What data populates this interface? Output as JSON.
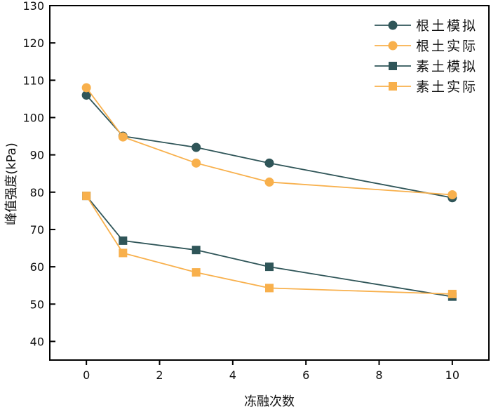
{
  "chart_data": {
    "type": "line",
    "title": "",
    "xlabel": "冻融次数",
    "ylabel": "峰值强度(kPa)",
    "xlim": [
      -1,
      11
    ],
    "ylim": [
      35,
      130
    ],
    "xticks": [
      0,
      2,
      4,
      6,
      8,
      10
    ],
    "yticks": [
      40,
      50,
      60,
      70,
      80,
      90,
      100,
      110,
      120,
      130
    ],
    "grid": false,
    "legend_position": "top-right",
    "x": [
      0,
      1,
      3,
      5,
      10
    ],
    "series": [
      {
        "name": "根土模拟",
        "marker": "circle",
        "color": "#2f5558",
        "values": [
          106,
          95,
          92,
          87.8,
          78.5
        ]
      },
      {
        "name": "根土实际",
        "marker": "circle",
        "color": "#f8b04c",
        "values": [
          108,
          94.8,
          87.8,
          82.7,
          79.3
        ]
      },
      {
        "name": "素土模拟",
        "marker": "square",
        "color": "#2f5558",
        "values": [
          79,
          67,
          64.5,
          60,
          52
        ]
      },
      {
        "name": "素土实际",
        "marker": "square",
        "color": "#f8b04c",
        "values": [
          79,
          63.7,
          58.5,
          54.3,
          52.7
        ]
      }
    ]
  }
}
